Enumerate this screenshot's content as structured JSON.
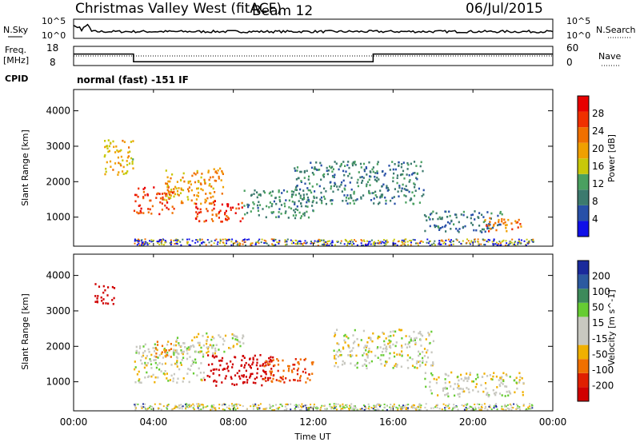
{
  "header": {
    "station": "Christmas Valley West (fitACF)",
    "beam": "Beam 12",
    "date": "06/Jul/2015"
  },
  "top_panels": {
    "nsky_label": "N.Sky",
    "nsearch_label": "N.Search",
    "noise_ticks": [
      "10^5",
      "10^0"
    ],
    "freq_label": "Freq.",
    "freq_unit": "[MHz]",
    "freq_ticks": [
      "18",
      "8"
    ],
    "nave_label": "Nave",
    "nave_ticks": [
      "60",
      "0"
    ],
    "cpid_label": "CPID",
    "cpid_value": "normal (fast) -151 IF"
  },
  "colors": {
    "power_scale": [
      "#1010e8",
      "#2850a8",
      "#3c7a6e",
      "#4aa060",
      "#c8c80a",
      "#f0a000",
      "#f07000",
      "#f03000",
      "#e80000"
    ],
    "velocity_scale": [
      "#1a2a9c",
      "#2c5aa0",
      "#3d8a5a",
      "#66cc33",
      "#c8c8c0",
      "#c8c8c0",
      "#f0b000",
      "#f07000",
      "#e02000",
      "#d00000"
    ]
  },
  "chart_data": [
    {
      "type": "heatmap",
      "ylabel": "Slant Range [km]",
      "ylim": [
        180,
        4600
      ],
      "y_ticks": [
        1000,
        2000,
        3000,
        4000
      ],
      "colorbar": {
        "label": "Power [dB]",
        "ticks": [
          "4",
          "8",
          "12",
          "16",
          "20",
          "24",
          "28"
        ],
        "range": [
          0,
          32
        ]
      },
      "regions": [
        {
          "t0": 3.0,
          "t1": 5.0,
          "r0": 1100,
          "r1": 1900,
          "value": 26
        },
        {
          "t0": 4.5,
          "t1": 7.5,
          "r0": 1400,
          "r1": 2400,
          "value": 20
        },
        {
          "t0": 6.0,
          "t1": 8.5,
          "r0": 900,
          "r1": 1500,
          "value": 27
        },
        {
          "t0": 8.5,
          "t1": 12.0,
          "r0": 1000,
          "r1": 1800,
          "value": 10
        },
        {
          "t0": 17.5,
          "t1": 21.5,
          "r0": 600,
          "r1": 1200,
          "value": 8
        },
        {
          "t0": 20.5,
          "t1": 22.5,
          "r0": 600,
          "r1": 1000,
          "value": 22
        },
        {
          "t0": 11.0,
          "t1": 17.5,
          "r0": 1400,
          "r1": 2600,
          "value": 9
        },
        {
          "t0": 1.5,
          "t1": 3.0,
          "r0": 2200,
          "r1": 3200,
          "value": 18
        }
      ]
    },
    {
      "type": "heatmap",
      "ylabel": "Velocity [m s^-1]",
      "y_axis_label": "Slant Range [km]",
      "ylim": [
        180,
        4600
      ],
      "y_ticks": [
        1000,
        2000,
        3000,
        4000
      ],
      "colorbar": {
        "ticks": [
          "200",
          "100",
          "50",
          "15",
          "-15",
          "-50",
          "-100",
          "-200"
        ]
      },
      "regions": [
        {
          "t0": 3.0,
          "t1": 6.5,
          "r0": 1000,
          "r1": 2100,
          "value": 0
        },
        {
          "t0": 4.0,
          "t1": 5.0,
          "r0": 1700,
          "r1": 2200,
          "value": -60
        },
        {
          "t0": 5.0,
          "t1": 8.5,
          "r0": 1800,
          "r1": 2400,
          "value": 0
        },
        {
          "t0": 6.5,
          "t1": 10.0,
          "r0": 900,
          "r1": 1800,
          "value": -200
        },
        {
          "t0": 9.5,
          "t1": 12.0,
          "r0": 1000,
          "r1": 1700,
          "value": -90
        },
        {
          "t0": 17.5,
          "t1": 22.5,
          "r0": 600,
          "r1": 1300,
          "value": 0
        },
        {
          "t0": 13.0,
          "t1": 18.0,
          "r0": 1400,
          "r1": 2500,
          "value": 0
        },
        {
          "t0": 1.0,
          "t1": 2.0,
          "r0": 3200,
          "r1": 3800,
          "value": -200
        }
      ]
    }
  ],
  "x_axis": {
    "label": "Time UT",
    "ticks": [
      "00:00",
      "04:00",
      "08:00",
      "12:00",
      "16:00",
      "20:00",
      "00:00"
    ],
    "range_hours": [
      0,
      24
    ]
  },
  "frequency": {
    "segments": [
      {
        "t0": 0,
        "t1": 3,
        "mhz": 14
      },
      {
        "t0": 3,
        "t1": 15,
        "mhz": 10
      },
      {
        "t0": 15,
        "t1": 24,
        "mhz": 14
      }
    ]
  }
}
